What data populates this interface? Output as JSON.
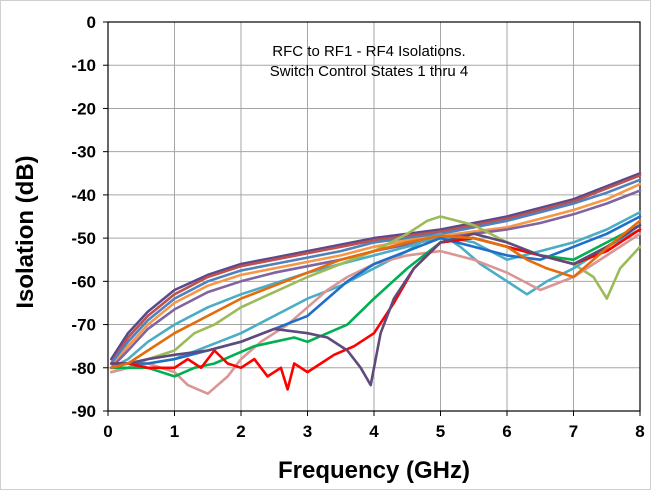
{
  "chart_data": {
    "type": "line",
    "title": "",
    "annotation": [
      "RFC to RF1 - RF4 Isolations.",
      "Switch Control States 1 thru 4"
    ],
    "xlabel": "Frequency (GHz)",
    "ylabel": "Isolation (dB)",
    "xlim": [
      0,
      8
    ],
    "ylim": [
      -90,
      0
    ],
    "xticks": [
      0,
      1,
      2,
      3,
      4,
      5,
      6,
      7,
      8
    ],
    "yticks": [
      0,
      -10,
      -20,
      -30,
      -40,
      -50,
      -60,
      -70,
      -80,
      -90
    ],
    "grid": true,
    "legend": "none",
    "series": [
      {
        "color": "#5B4A8B",
        "x": [
          0.05,
          0.3,
          0.6,
          1,
          1.5,
          2,
          2.5,
          3,
          3.5,
          4,
          4.5,
          5,
          5.5,
          6,
          6.5,
          7,
          7.5,
          8
        ],
        "y": [
          -78,
          -72,
          -67,
          -62,
          -58.5,
          -56,
          -54.5,
          -53,
          -51.5,
          -50,
          -49,
          -48,
          -46.5,
          -45,
          -43,
          -41,
          -38,
          -35
        ]
      },
      {
        "color": "#C0504D",
        "x": [
          0.05,
          0.3,
          0.6,
          1,
          1.5,
          2,
          2.5,
          3,
          3.5,
          4,
          4.5,
          5,
          5.5,
          6,
          6.5,
          7,
          7.5,
          8
        ],
        "y": [
          -79,
          -73,
          -68,
          -63,
          -59,
          -56.5,
          -55,
          -53.5,
          -52,
          -50.5,
          -49.5,
          -48.5,
          -47,
          -45.5,
          -43.5,
          -41.5,
          -38.5,
          -35.5
        ]
      },
      {
        "color": "#4F81BD",
        "x": [
          0.05,
          0.3,
          0.6,
          1,
          1.5,
          2,
          2.5,
          3,
          3.5,
          4,
          4.5,
          5,
          5.5,
          6,
          6.5,
          7,
          7.5,
          8
        ],
        "y": [
          -79,
          -74,
          -69,
          -64,
          -60,
          -57.5,
          -56,
          -54.5,
          -53,
          -51,
          -50,
          -49,
          -47.5,
          -46,
          -44,
          -42,
          -39.5,
          -36.5
        ]
      },
      {
        "color": "#F79646",
        "x": [
          0.05,
          0.3,
          0.6,
          1,
          1.5,
          2,
          2.5,
          3,
          3.5,
          4,
          4.5,
          5,
          5.5,
          6,
          6.5,
          7,
          7.5,
          8
        ],
        "y": [
          -80,
          -75,
          -70,
          -65,
          -61,
          -58.5,
          -57,
          -55.5,
          -54,
          -52,
          -50.5,
          -49.5,
          -48.5,
          -47.5,
          -45.5,
          -43.5,
          -41,
          -37.5
        ]
      },
      {
        "color": "#8064A2",
        "x": [
          0.05,
          0.3,
          0.6,
          1,
          1.5,
          2,
          2.5,
          3,
          3.5,
          4,
          4.5,
          5,
          5.5,
          6,
          6.5,
          7,
          7.5,
          8
        ],
        "y": [
          -80,
          -76,
          -71,
          -66.5,
          -62.5,
          -60,
          -58,
          -56.5,
          -55,
          -53,
          -51.5,
          -50,
          -49,
          -48,
          -46.5,
          -44.5,
          -42,
          -39
        ]
      },
      {
        "color": "#4BACC6",
        "x": [
          0.05,
          0.3,
          0.6,
          1,
          1.5,
          2,
          2.5,
          3,
          3.5,
          4,
          4.5,
          5,
          5.5,
          6,
          6.5,
          7,
          7.5,
          8
        ],
        "y": [
          -80,
          -78,
          -74,
          -70,
          -66,
          -63,
          -60.5,
          -58,
          -56,
          -54,
          -52,
          -49.5,
          -51,
          -55,
          -53,
          -51,
          -48,
          -44
        ]
      },
      {
        "color": "#9BBB59",
        "x": [
          0.05,
          0.3,
          0.6,
          1,
          1.3,
          1.6,
          2,
          2.5,
          3,
          3.5,
          4,
          4.5,
          4.8,
          5,
          5.5,
          6,
          6.5,
          7,
          7.3,
          7.5,
          7.7,
          8
        ],
        "y": [
          -80,
          -80,
          -78,
          -76,
          -72,
          -70,
          -66,
          -62.5,
          -59,
          -56,
          -53,
          -49,
          -46,
          -45,
          -47,
          -51,
          -54,
          -56,
          -59,
          -64,
          -57,
          -52
        ]
      },
      {
        "color": "#4BACC6",
        "x": [
          0.05,
          0.3,
          0.6,
          1,
          1.5,
          2,
          2.5,
          3,
          3.5,
          4,
          4.5,
          4.8,
          5,
          5.3,
          5.6,
          6,
          6.3,
          6.6,
          7,
          7.5,
          8
        ],
        "y": [
          -81,
          -80,
          -79,
          -78,
          -75,
          -72,
          -68,
          -64,
          -61,
          -57,
          -53,
          -50,
          -49,
          -52,
          -56,
          -60,
          -63,
          -60,
          -57,
          -52,
          -48
        ]
      },
      {
        "color": "#D99694",
        "x": [
          0.05,
          0.3,
          0.6,
          1,
          1.2,
          1.5,
          1.8,
          2,
          2.3,
          2.7,
          3,
          3.3,
          3.6,
          4,
          4.5,
          5,
          5.5,
          6,
          6.5,
          7,
          7.5,
          8
        ],
        "y": [
          -81,
          -80,
          -79,
          -81,
          -84,
          -86,
          -82,
          -78,
          -74,
          -70,
          -66,
          -62,
          -59,
          -56,
          -54,
          -53,
          -55,
          -58,
          -62,
          -59,
          -54,
          -49
        ]
      },
      {
        "color": "#1F6FC8",
        "x": [
          0.05,
          0.3,
          0.6,
          1,
          1.5,
          2,
          2.5,
          3,
          3.3,
          3.6,
          4,
          4.5,
          5,
          5.5,
          6,
          6.5,
          7,
          7.5,
          8
        ],
        "y": [
          -79,
          -79,
          -79,
          -78,
          -76,
          -74,
          -71,
          -68,
          -64,
          -60,
          -56,
          -53,
          -50,
          -52,
          -54,
          -55,
          -52,
          -49,
          -45
        ]
      },
      {
        "color": "#00B050",
        "x": [
          0.05,
          0.3,
          0.6,
          1,
          1.3,
          1.6,
          1.9,
          2.2,
          2.5,
          2.8,
          3,
          3.3,
          3.6,
          4,
          4.5,
          5,
          5.5,
          6,
          6.5,
          7,
          7.5,
          8
        ],
        "y": [
          -80,
          -80,
          -80,
          -82,
          -80,
          -79,
          -77,
          -75,
          -74,
          -73,
          -74,
          -72,
          -70,
          -64,
          -57,
          -51,
          -50,
          -52,
          -54,
          -55,
          -51,
          -47
        ]
      },
      {
        "color": "#FF0000",
        "x": [
          0.05,
          0.3,
          0.6,
          1,
          1.2,
          1.4,
          1.6,
          1.8,
          2,
          2.2,
          2.4,
          2.6,
          2.7,
          2.8,
          2.9,
          3,
          3.2,
          3.4,
          3.7,
          4,
          4.3,
          4.6,
          5,
          5.5,
          6,
          6.5,
          7,
          7.5,
          8
        ],
        "y": [
          -79,
          -79,
          -80,
          -80,
          -78,
          -80,
          -76,
          -79,
          -80,
          -78,
          -82,
          -80,
          -85,
          -79,
          -80,
          -81,
          -79,
          -77,
          -75,
          -72,
          -65,
          -57,
          -51,
          -50,
          -52,
          -54,
          -56,
          -53,
          -48
        ]
      },
      {
        "color": "#604A7B",
        "x": [
          0.05,
          0.3,
          0.6,
          1,
          1.5,
          2,
          2.5,
          3,
          3.3,
          3.6,
          3.8,
          3.95,
          4.1,
          4.3,
          4.6,
          5,
          5.5,
          6,
          6.5,
          7,
          7.5,
          8
        ],
        "y": [
          -79,
          -79,
          -78,
          -77,
          -76,
          -74,
          -71,
          -72,
          -73,
          -76,
          -80,
          -84,
          -72,
          -64,
          -57,
          -51,
          -49,
          -51,
          -54,
          -56,
          -52,
          -47
        ]
      },
      {
        "color": "#E46C0A",
        "x": [
          0.05,
          0.3,
          0.6,
          1,
          1.5,
          2,
          2.5,
          3,
          3.5,
          4,
          4.5,
          5,
          5.5,
          6,
          6.3,
          6.6,
          7,
          7.3,
          7.6,
          8
        ],
        "y": [
          -80,
          -79,
          -76,
          -72,
          -68,
          -64,
          -61,
          -58,
          -55,
          -53,
          -51,
          -49.5,
          -50,
          -52,
          -55,
          -57,
          -59,
          -55,
          -51,
          -46
        ]
      }
    ]
  }
}
